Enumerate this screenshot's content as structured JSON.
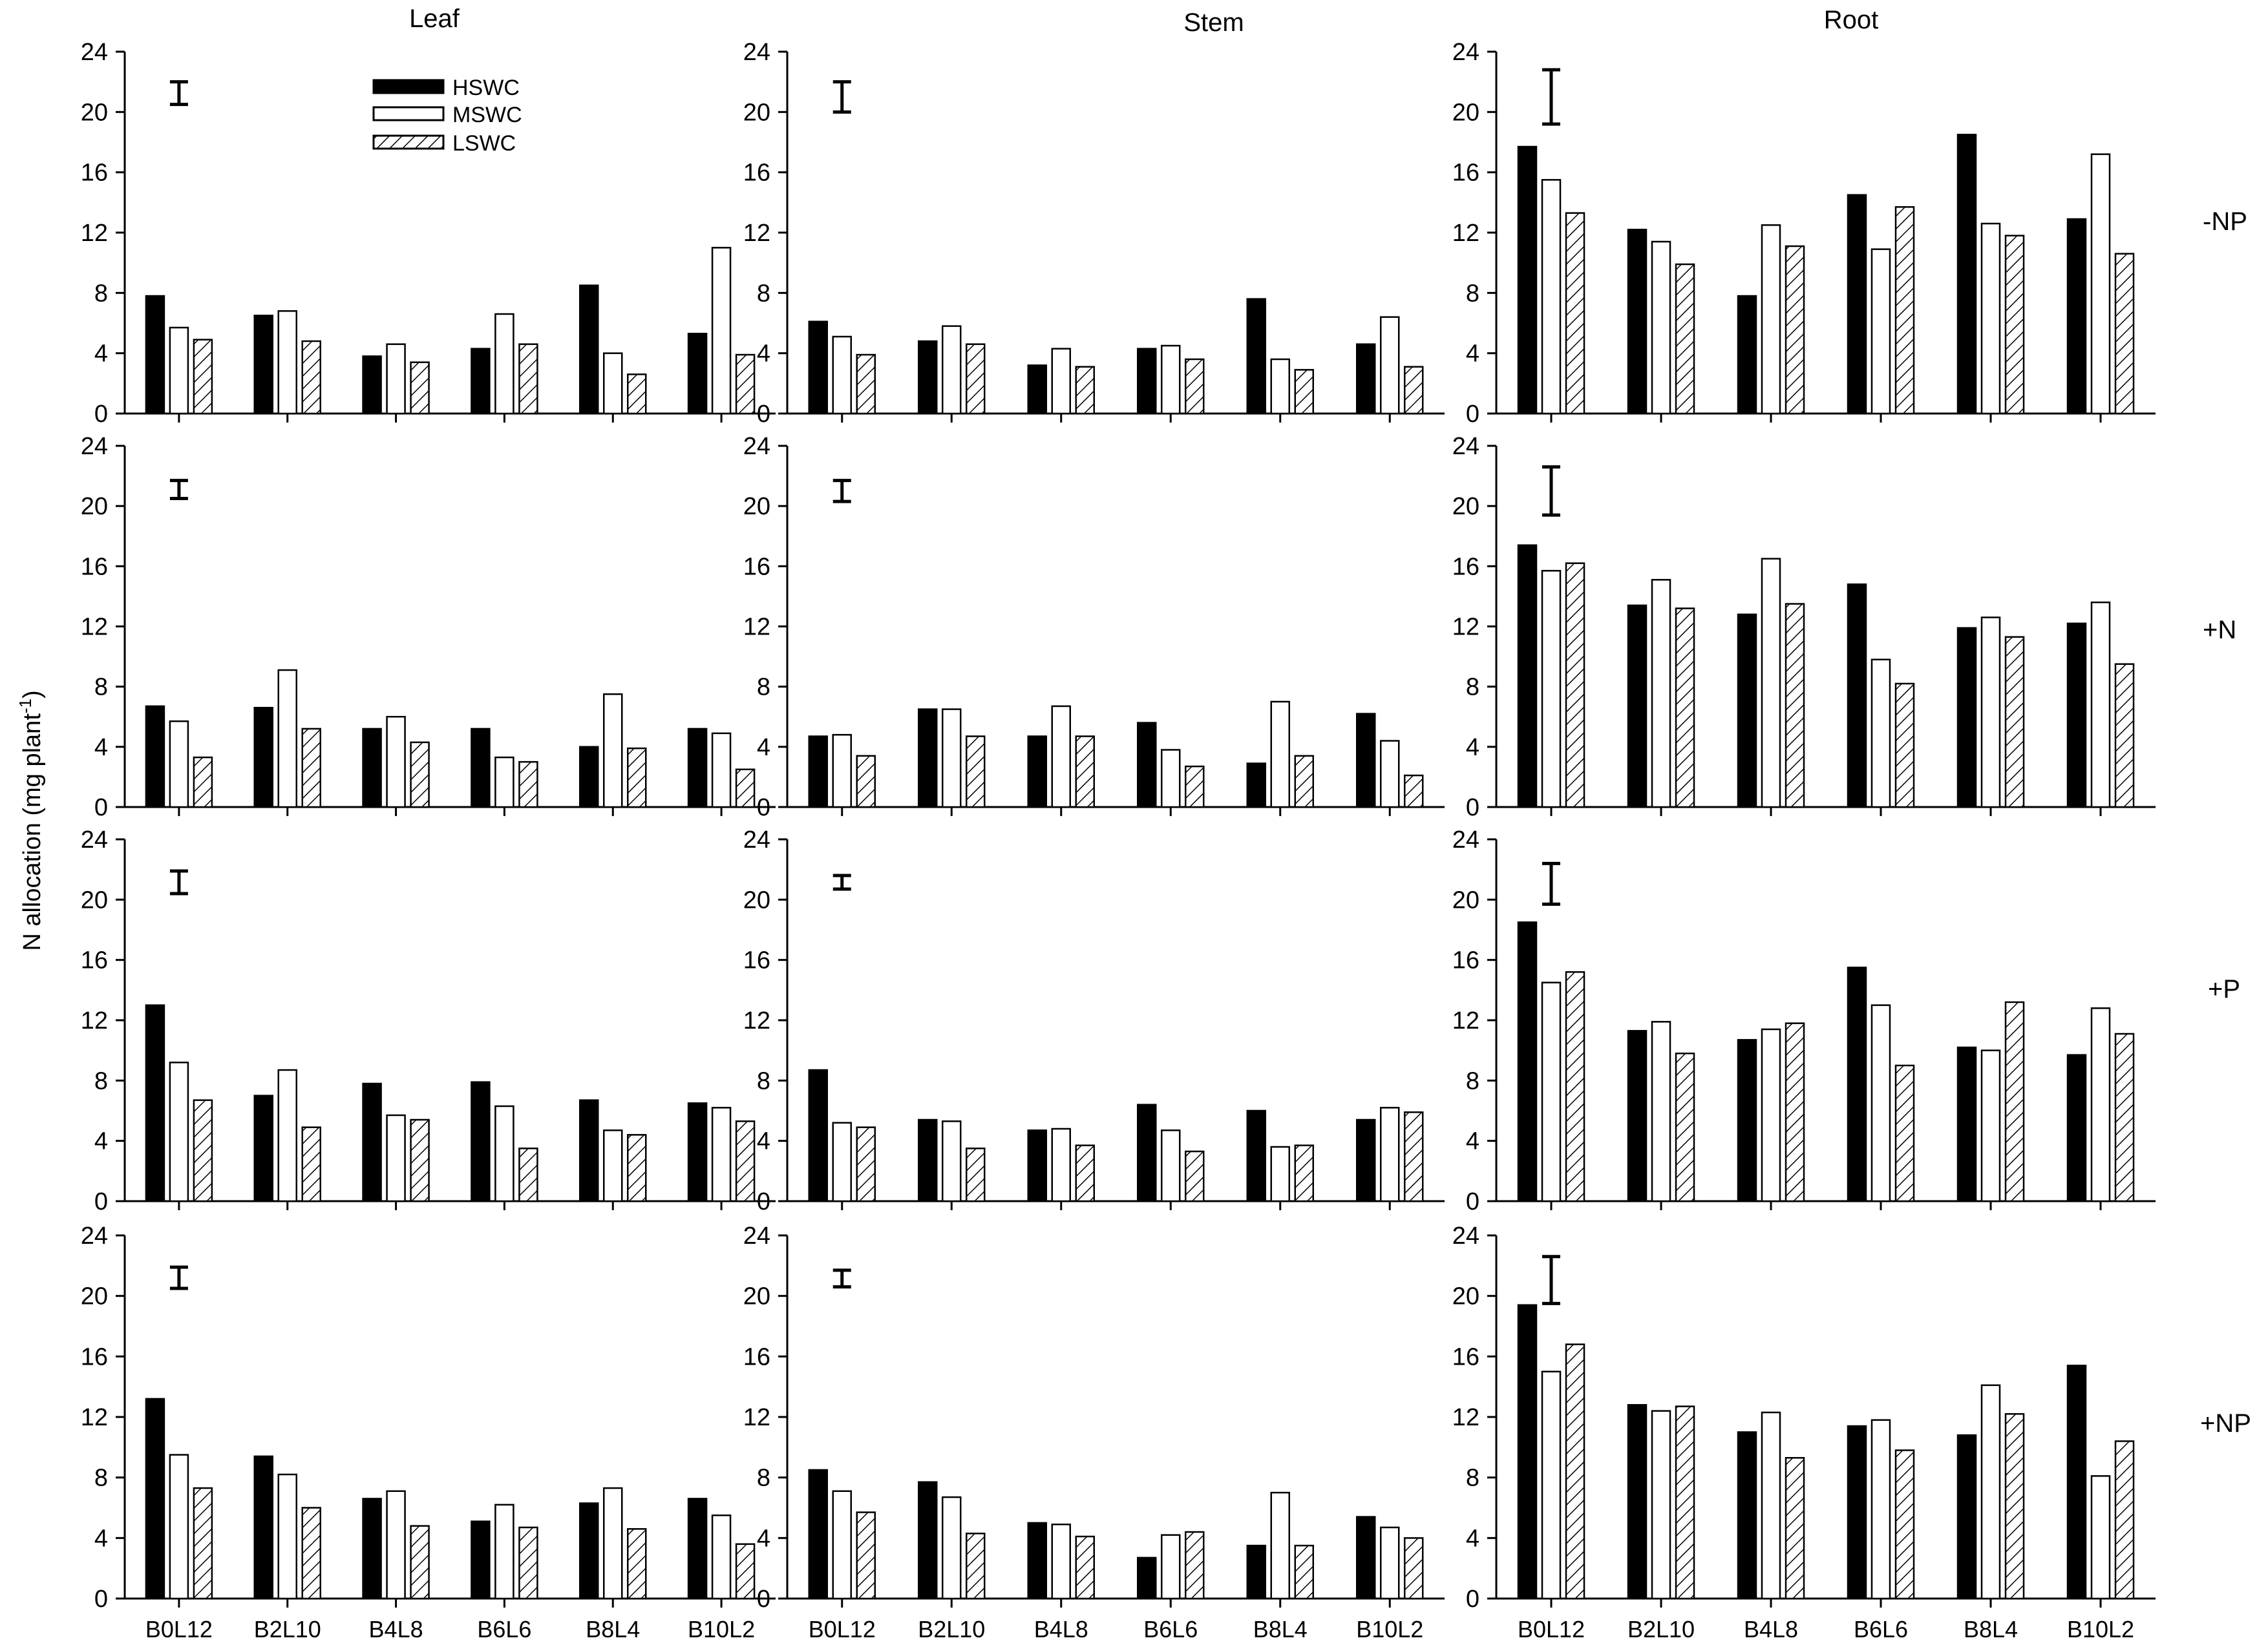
{
  "figure": {
    "ylabel": "N allocation (mg plant",
    "ylabel_sup": "-1",
    "ylabel_close": ")",
    "column_titles": [
      "Leaf",
      "Stem",
      "Root"
    ],
    "row_labels": [
      "-NP",
      "+N",
      "+P",
      "+NP"
    ],
    "categories": [
      "B0L12",
      "B2L10",
      "B4L8",
      "B6L6",
      "B8L4",
      "B10L2"
    ],
    "yticks": [
      0,
      4,
      8,
      12,
      16,
      20,
      24
    ],
    "ylim": [
      0,
      24
    ],
    "legend": {
      "placement": "top-left of Leaf -NP panel",
      "series": [
        {
          "name": "HSWC",
          "style": "solid-black"
        },
        {
          "name": "MSWC",
          "style": "open-white"
        },
        {
          "name": "LSWC",
          "style": "hatched"
        }
      ]
    },
    "colors": {
      "ink": "#000000",
      "background": "#ffffff"
    }
  },
  "chart_data": [
    {
      "type": "bar",
      "row": "-NP",
      "tissue": "Leaf",
      "categories": [
        "B0L12",
        "B2L10",
        "B4L8",
        "B6L6",
        "B8L4",
        "B10L2"
      ],
      "ylim": [
        0,
        24
      ],
      "error_bar": [
        20.5,
        22.0
      ],
      "series": [
        {
          "name": "HSWC",
          "values": [
            7.8,
            6.5,
            3.8,
            4.3,
            8.5,
            5.3
          ]
        },
        {
          "name": "MSWC",
          "values": [
            5.7,
            6.8,
            4.6,
            6.6,
            4.0,
            11.0
          ]
        },
        {
          "name": "LSWC",
          "values": [
            4.9,
            4.8,
            3.4,
            4.6,
            2.6,
            3.9
          ]
        }
      ]
    },
    {
      "type": "bar",
      "row": "-NP",
      "tissue": "Stem",
      "categories": [
        "B0L12",
        "B2L10",
        "B4L8",
        "B6L6",
        "B8L4",
        "B10L2"
      ],
      "ylim": [
        0,
        24
      ],
      "error_bar": [
        20.0,
        22.0
      ],
      "series": [
        {
          "name": "HSWC",
          "values": [
            6.1,
            4.8,
            3.2,
            4.3,
            7.6,
            4.6
          ]
        },
        {
          "name": "MSWC",
          "values": [
            5.1,
            5.8,
            4.3,
            4.5,
            3.6,
            6.4
          ]
        },
        {
          "name": "LSWC",
          "values": [
            3.9,
            4.6,
            3.1,
            3.6,
            2.9,
            3.1
          ]
        }
      ]
    },
    {
      "type": "bar",
      "row": "-NP",
      "tissue": "Root",
      "categories": [
        "B0L12",
        "B2L10",
        "B4L8",
        "B6L6",
        "B8L4",
        "B10L2"
      ],
      "ylim": [
        0,
        24
      ],
      "error_bar": [
        19.2,
        22.8
      ],
      "series": [
        {
          "name": "HSWC",
          "values": [
            17.7,
            12.2,
            7.8,
            14.5,
            18.5,
            12.9
          ]
        },
        {
          "name": "MSWC",
          "values": [
            15.5,
            11.4,
            12.5,
            10.9,
            12.6,
            17.2
          ]
        },
        {
          "name": "LSWC",
          "values": [
            13.3,
            9.9,
            11.1,
            13.7,
            11.8,
            10.6
          ]
        }
      ]
    },
    {
      "type": "bar",
      "row": "+N",
      "tissue": "Leaf",
      "categories": [
        "B0L12",
        "B2L10",
        "B4L8",
        "B6L6",
        "B8L4",
        "B10L2"
      ],
      "ylim": [
        0,
        24
      ],
      "error_bar": [
        20.5,
        21.7
      ],
      "series": [
        {
          "name": "HSWC",
          "values": [
            6.7,
            6.6,
            5.2,
            5.2,
            4.0,
            5.2
          ]
        },
        {
          "name": "MSWC",
          "values": [
            5.7,
            9.1,
            6.0,
            3.3,
            7.5,
            4.9
          ]
        },
        {
          "name": "LSWC",
          "values": [
            3.3,
            5.2,
            4.3,
            3.0,
            3.9,
            2.5
          ]
        }
      ]
    },
    {
      "type": "bar",
      "row": "+N",
      "tissue": "Stem",
      "categories": [
        "B0L12",
        "B2L10",
        "B4L8",
        "B6L6",
        "B8L4",
        "B10L2"
      ],
      "ylim": [
        0,
        24
      ],
      "error_bar": [
        20.3,
        21.7
      ],
      "series": [
        {
          "name": "HSWC",
          "values": [
            4.7,
            6.5,
            4.7,
            5.6,
            2.9,
            6.2
          ]
        },
        {
          "name": "MSWC",
          "values": [
            4.8,
            6.5,
            6.7,
            3.8,
            7.0,
            4.4
          ]
        },
        {
          "name": "LSWC",
          "values": [
            3.4,
            4.7,
            4.7,
            2.7,
            3.4,
            2.1
          ]
        }
      ]
    },
    {
      "type": "bar",
      "row": "+N",
      "tissue": "Root",
      "categories": [
        "B0L12",
        "B2L10",
        "B4L8",
        "B6L6",
        "B8L4",
        "B10L2"
      ],
      "ylim": [
        0,
        24
      ],
      "error_bar": [
        19.4,
        22.6
      ],
      "series": [
        {
          "name": "HSWC",
          "values": [
            17.4,
            13.4,
            12.8,
            14.8,
            11.9,
            12.2
          ]
        },
        {
          "name": "MSWC",
          "values": [
            15.7,
            15.1,
            16.5,
            9.8,
            12.6,
            13.6
          ]
        },
        {
          "name": "LSWC",
          "values": [
            16.2,
            13.2,
            13.5,
            8.2,
            11.3,
            9.5
          ]
        }
      ]
    },
    {
      "type": "bar",
      "row": "+P",
      "tissue": "Leaf",
      "categories": [
        "B0L12",
        "B2L10",
        "B4L8",
        "B6L6",
        "B8L4",
        "B10L2"
      ],
      "ylim": [
        0,
        24
      ],
      "error_bar": [
        20.4,
        21.9
      ],
      "series": [
        {
          "name": "HSWC",
          "values": [
            13.0,
            7.0,
            7.8,
            7.9,
            6.7,
            6.5
          ]
        },
        {
          "name": "MSWC",
          "values": [
            9.2,
            8.7,
            5.7,
            6.3,
            4.7,
            6.2
          ]
        },
        {
          "name": "LSWC",
          "values": [
            6.7,
            4.9,
            5.4,
            3.5,
            4.4,
            5.3
          ]
        }
      ]
    },
    {
      "type": "bar",
      "row": "+P",
      "tissue": "Stem",
      "categories": [
        "B0L12",
        "B2L10",
        "B4L8",
        "B6L6",
        "B8L4",
        "B10L2"
      ],
      "ylim": [
        0,
        24
      ],
      "error_bar": [
        20.7,
        21.6
      ],
      "series": [
        {
          "name": "HSWC",
          "values": [
            8.7,
            5.4,
            4.7,
            6.4,
            6.0,
            5.4
          ]
        },
        {
          "name": "MSWC",
          "values": [
            5.2,
            5.3,
            4.8,
            4.7,
            3.6,
            6.2
          ]
        },
        {
          "name": "LSWC",
          "values": [
            4.9,
            3.5,
            3.7,
            3.3,
            3.7,
            5.9
          ]
        }
      ]
    },
    {
      "type": "bar",
      "row": "+P",
      "tissue": "Root",
      "categories": [
        "B0L12",
        "B2L10",
        "B4L8",
        "B6L6",
        "B8L4",
        "B10L2"
      ],
      "ylim": [
        0,
        24
      ],
      "error_bar": [
        19.7,
        22.4
      ],
      "series": [
        {
          "name": "HSWC",
          "values": [
            18.5,
            11.3,
            10.7,
            15.5,
            10.2,
            9.7
          ]
        },
        {
          "name": "MSWC",
          "values": [
            14.5,
            11.9,
            11.4,
            13.0,
            10.0,
            12.8
          ]
        },
        {
          "name": "LSWC",
          "values": [
            15.2,
            9.8,
            11.8,
            9.0,
            13.2,
            11.1
          ]
        }
      ]
    },
    {
      "type": "bar",
      "row": "+NP",
      "tissue": "Leaf",
      "categories": [
        "B0L12",
        "B2L10",
        "B4L8",
        "B6L6",
        "B8L4",
        "B10L2"
      ],
      "ylim": [
        0,
        24
      ],
      "error_bar": [
        20.5,
        21.9
      ],
      "series": [
        {
          "name": "HSWC",
          "values": [
            13.2,
            9.4,
            6.6,
            5.1,
            6.3,
            6.6
          ]
        },
        {
          "name": "MSWC",
          "values": [
            9.5,
            8.2,
            7.1,
            6.2,
            7.3,
            5.5
          ]
        },
        {
          "name": "LSWC",
          "values": [
            7.3,
            6.0,
            4.8,
            4.7,
            4.6,
            3.6
          ]
        }
      ]
    },
    {
      "type": "bar",
      "row": "+NP",
      "tissue": "Stem",
      "categories": [
        "B0L12",
        "B2L10",
        "B4L8",
        "B6L6",
        "B8L4",
        "B10L2"
      ],
      "ylim": [
        0,
        24
      ],
      "error_bar": [
        20.6,
        21.7
      ],
      "series": [
        {
          "name": "HSWC",
          "values": [
            8.5,
            7.7,
            5.0,
            2.7,
            3.5,
            5.4
          ]
        },
        {
          "name": "MSWC",
          "values": [
            7.1,
            6.7,
            4.9,
            4.2,
            7.0,
            4.7
          ]
        },
        {
          "name": "LSWC",
          "values": [
            5.7,
            4.3,
            4.1,
            4.4,
            3.5,
            4.0
          ]
        }
      ]
    },
    {
      "type": "bar",
      "row": "+NP",
      "tissue": "Root",
      "categories": [
        "B0L12",
        "B2L10",
        "B4L8",
        "B6L6",
        "B8L4",
        "B10L2"
      ],
      "ylim": [
        0,
        24
      ],
      "error_bar": [
        19.5,
        22.6
      ],
      "series": [
        {
          "name": "HSWC",
          "values": [
            19.4,
            12.8,
            11.0,
            11.4,
            10.8,
            15.4
          ]
        },
        {
          "name": "MSWC",
          "values": [
            15.0,
            12.4,
            12.3,
            11.8,
            14.1,
            8.1
          ]
        },
        {
          "name": "LSWC",
          "values": [
            16.8,
            12.7,
            9.3,
            9.8,
            12.2,
            10.4
          ]
        }
      ]
    }
  ]
}
